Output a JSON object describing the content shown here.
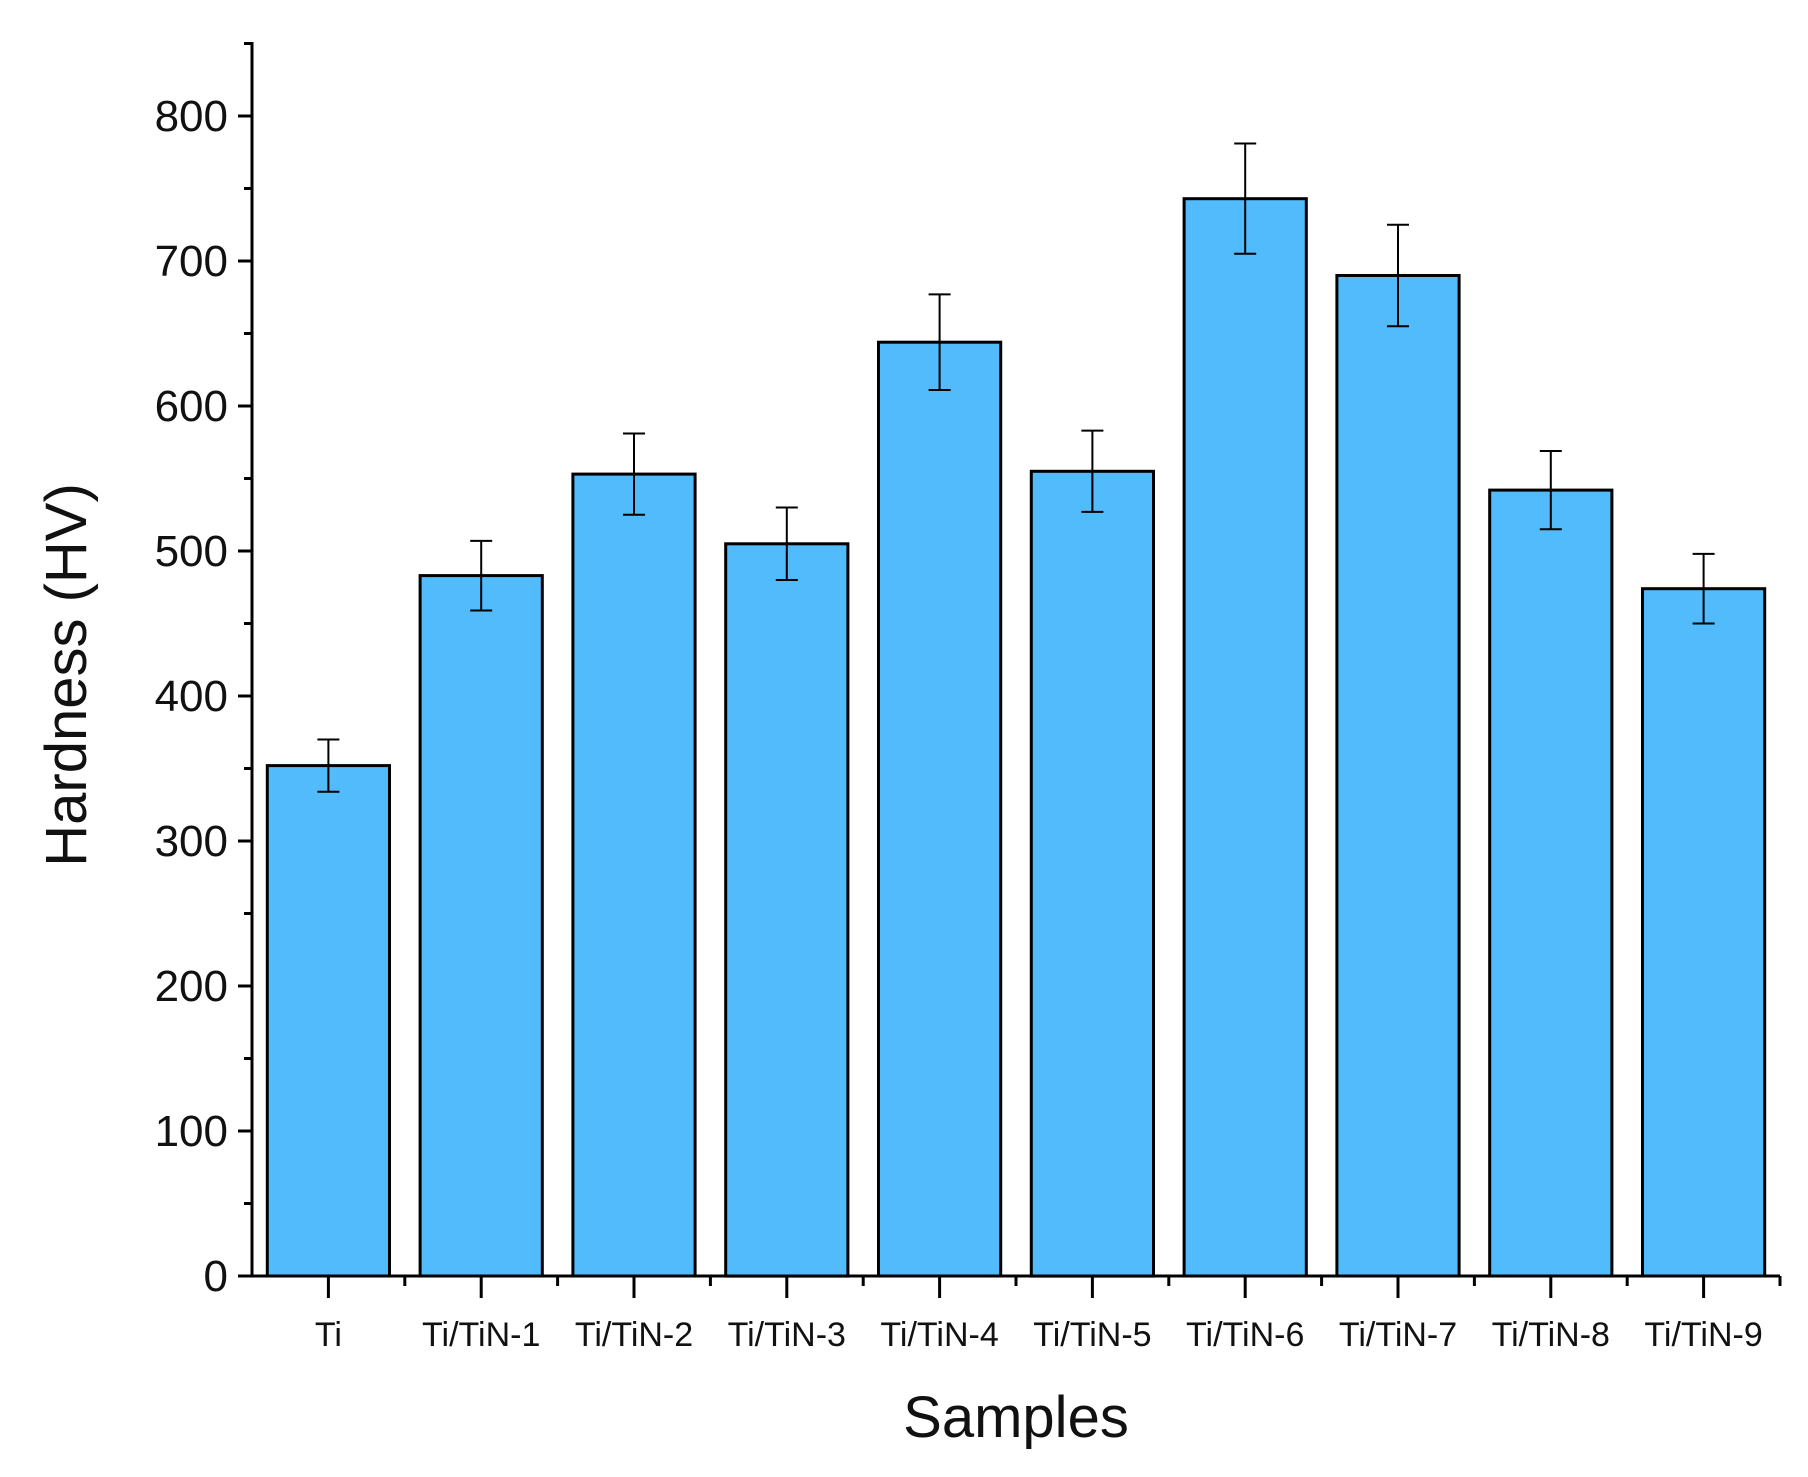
{
  "chart_data": {
    "type": "bar",
    "title": "",
    "xlabel": "Samples",
    "ylabel": "Hardness (HV)",
    "ylim": [
      0,
      850
    ],
    "yticks": [
      0,
      100,
      200,
      300,
      400,
      500,
      600,
      700,
      800
    ],
    "categories": [
      "Ti",
      "Ti/TiN-1",
      "Ti/TiN-2",
      "Ti/TiN-3",
      "Ti/TiN-4",
      "Ti/TiN-5",
      "Ti/TiN-6",
      "Ti/TiN-7",
      "Ti/TiN-8",
      "Ti/TiN-9"
    ],
    "values": [
      352,
      483,
      553,
      505,
      644,
      555,
      743,
      690,
      542,
      474
    ],
    "errors": [
      18,
      24,
      28,
      25,
      33,
      28,
      38,
      35,
      27,
      24
    ],
    "grid": false,
    "legend": "none",
    "colors": {
      "bar_fill": "#52BBFC",
      "bar_stroke": "#000000",
      "axis": "#000000"
    }
  }
}
